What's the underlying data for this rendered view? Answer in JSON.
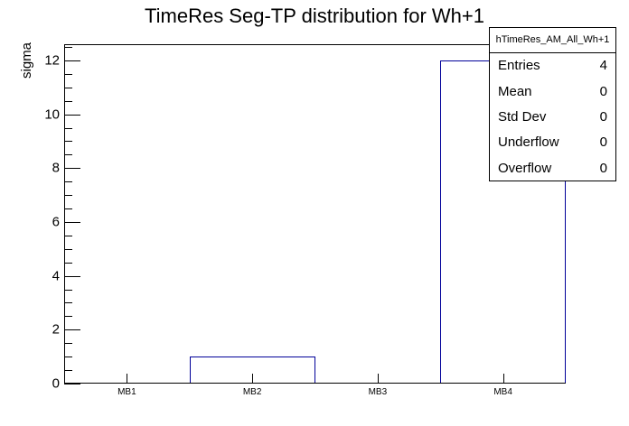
{
  "title": "TimeRes Seg-TP distribution for Wh+1",
  "stats_box": {
    "header": "hTimeRes_AM_All_Wh+1",
    "rows": [
      {
        "label": "Entries",
        "value": "4"
      },
      {
        "label": "Mean",
        "value": "0"
      },
      {
        "label": "Std Dev",
        "value": "0"
      },
      {
        "label": "Underflow",
        "value": "0"
      },
      {
        "label": "Overflow",
        "value": "0"
      }
    ]
  },
  "chart_data": {
    "type": "bar",
    "title": "TimeRes Seg-TP distribution for Wh+1",
    "categories": [
      "MB1",
      "MB2",
      "MB3",
      "MB4"
    ],
    "values": [
      0,
      1,
      0,
      12
    ],
    "xlabel": "",
    "ylabel": "sigma",
    "ylim": [
      0,
      12.6
    ],
    "y_major_ticks": [
      0,
      2,
      4,
      6,
      8,
      10,
      12
    ],
    "y_minor_step": 0.5,
    "grid": false,
    "legend_position": "none",
    "bar_color": "#000099",
    "axis_color": "#000000",
    "background_color": "#ffffff"
  }
}
